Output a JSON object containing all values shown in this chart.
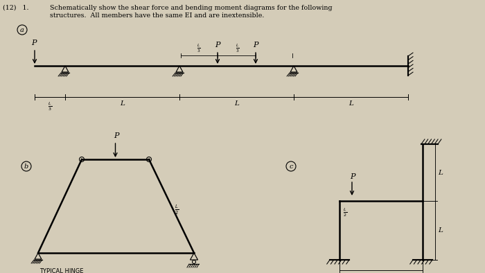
{
  "bg_color": "#d4ccb8",
  "text_color": "#1a1a1a",
  "title1": "(12)   1.",
  "title2": "Schematically show the shear force and bending moment diagrams for the following",
  "title3": "structures.  All members have the same EI and are inextensible.",
  "label_a": "a",
  "label_b": "b",
  "label_c": "c",
  "fig_w": 7.0,
  "fig_h": 3.94,
  "dpi": 100
}
